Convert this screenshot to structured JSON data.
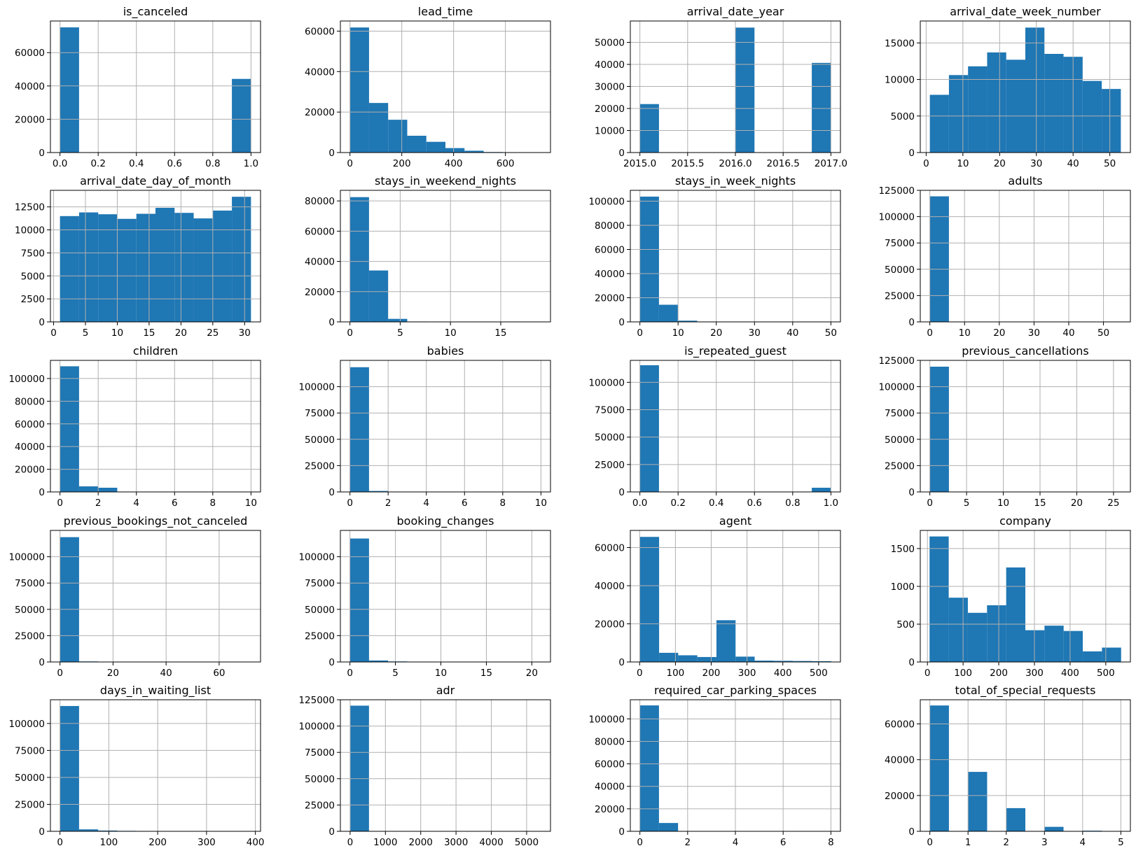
{
  "figure": {
    "bar_color": "#1f77b4",
    "grid_color": "#b0b0b0"
  },
  "chart_data": [
    {
      "type": "bar",
      "title": "is_canceled",
      "grid": true,
      "xlim": [
        -0.05,
        1.05
      ],
      "ylim": [
        0,
        79000
      ],
      "xticks": [
        0.0,
        0.2,
        0.4,
        0.6,
        0.8,
        1.0
      ],
      "xtick_labels": [
        "0.0",
        "0.2",
        "0.4",
        "0.6",
        "0.8",
        "1.0"
      ],
      "yticks": [
        0,
        20000,
        40000,
        60000
      ],
      "ytick_labels": [
        "0",
        "20000",
        "40000",
        "60000"
      ],
      "bin_edges": [
        0,
        0.1,
        0.2,
        0.3,
        0.4,
        0.5,
        0.6,
        0.7,
        0.8,
        0.9,
        1.0
      ],
      "values": [
        75166,
        0,
        0,
        0,
        0,
        0,
        0,
        0,
        0,
        44224
      ]
    },
    {
      "type": "bar",
      "title": "lead_time",
      "grid": true,
      "xlim": [
        -37,
        774
      ],
      "ylim": [
        0,
        65000
      ],
      "xticks": [
        0,
        200,
        400,
        600
      ],
      "xtick_labels": [
        "0",
        "200",
        "400",
        "600"
      ],
      "yticks": [
        0,
        20000,
        40000,
        60000
      ],
      "ytick_labels": [
        "0",
        "20000",
        "40000",
        "60000"
      ],
      "bin_edges": [
        0,
        73.7,
        147.4,
        221.1,
        294.8,
        368.5,
        442.2,
        515.9,
        589.6,
        663.3,
        737
      ],
      "values": [
        61800,
        24500,
        16200,
        8300,
        5300,
        2200,
        900,
        250,
        60,
        30
      ]
    },
    {
      "type": "bar",
      "title": "arrival_date_year",
      "grid": true,
      "xlim": [
        2014.9,
        2017.1
      ],
      "ylim": [
        0,
        59700
      ],
      "xticks": [
        2015.0,
        2015.5,
        2016.0,
        2016.5,
        2017.0
      ],
      "xtick_labels": [
        "2015.0",
        "2015.5",
        "2016.0",
        "2016.5",
        "2017.0"
      ],
      "yticks": [
        0,
        10000,
        20000,
        30000,
        40000,
        50000
      ],
      "ytick_labels": [
        "0",
        "10000",
        "20000",
        "30000",
        "40000",
        "50000"
      ],
      "bin_edges": [
        2015.0,
        2015.2,
        2015.4,
        2015.6,
        2015.8,
        2016.0,
        2016.2,
        2016.4,
        2016.6,
        2016.8,
        2017.0
      ],
      "values": [
        21996,
        0,
        0,
        0,
        0,
        56707,
        0,
        0,
        0,
        40687
      ]
    },
    {
      "type": "bar",
      "title": "arrival_date_week_number",
      "grid": true,
      "xlim": [
        -1.6,
        55.6
      ],
      "ylim": [
        0,
        18000
      ],
      "xticks": [
        0,
        10,
        20,
        30,
        40,
        50
      ],
      "xtick_labels": [
        "0",
        "10",
        "20",
        "30",
        "40",
        "50"
      ],
      "yticks": [
        0,
        5000,
        10000,
        15000
      ],
      "ytick_labels": [
        "0",
        "5000",
        "10000",
        "15000"
      ],
      "bin_edges": [
        1,
        6.2,
        11.4,
        16.6,
        21.8,
        27,
        32.2,
        37.4,
        42.6,
        47.8,
        53
      ],
      "values": [
        7900,
        10600,
        11800,
        13700,
        12700,
        17100,
        13500,
        13100,
        9800,
        8700
      ]
    },
    {
      "type": "bar",
      "title": "arrival_date_day_of_month",
      "grid": true,
      "xlim": [
        -0.5,
        32.5
      ],
      "ylim": [
        0,
        14300
      ],
      "xticks": [
        0,
        5,
        10,
        15,
        20,
        25,
        30
      ],
      "xtick_labels": [
        "0",
        "5",
        "10",
        "15",
        "20",
        "25",
        "30"
      ],
      "yticks": [
        0,
        2500,
        5000,
        7500,
        10000,
        12500
      ],
      "ytick_labels": [
        "0",
        "2500",
        "5000",
        "7500",
        "10000",
        "12500"
      ],
      "bin_edges": [
        1,
        4,
        7,
        10,
        13,
        16,
        19,
        22,
        25,
        28,
        31
      ],
      "values": [
        11500,
        11900,
        11700,
        11200,
        11750,
        12400,
        11850,
        11250,
        12100,
        13600
      ]
    },
    {
      "type": "bar",
      "title": "stays_in_weekend_nights",
      "grid": true,
      "xlim": [
        -0.95,
        19.95
      ],
      "ylim": [
        0,
        87000
      ],
      "xticks": [
        0,
        5,
        10,
        15
      ],
      "xtick_labels": [
        "0",
        "5",
        "10",
        "15"
      ],
      "yticks": [
        0,
        20000,
        40000,
        60000,
        80000
      ],
      "ytick_labels": [
        "0",
        "20000",
        "40000",
        "60000",
        "80000"
      ],
      "bin_edges": [
        0,
        1.9,
        3.8,
        5.7,
        7.6,
        9.5,
        11.4,
        13.3,
        15.2,
        17.1,
        19
      ],
      "values": [
        82500,
        34000,
        2000,
        250,
        100,
        30,
        10,
        5,
        2,
        1
      ]
    },
    {
      "type": "bar",
      "title": "stays_in_week_nights",
      "grid": true,
      "xlim": [
        -2.5,
        52.5
      ],
      "ylim": [
        0,
        109000
      ],
      "xticks": [
        0,
        10,
        20,
        30,
        40,
        50
      ],
      "xtick_labels": [
        "0",
        "10",
        "20",
        "30",
        "40",
        "50"
      ],
      "yticks": [
        0,
        20000,
        40000,
        60000,
        80000,
        100000
      ],
      "ytick_labels": [
        "0",
        "20000",
        "40000",
        "60000",
        "80000",
        "100000"
      ],
      "bin_edges": [
        0,
        5,
        10,
        15,
        20,
        25,
        30,
        35,
        40,
        45,
        50
      ],
      "values": [
        103800,
        14200,
        1000,
        300,
        80,
        30,
        10,
        5,
        2,
        1
      ]
    },
    {
      "type": "bar",
      "title": "adults",
      "grid": true,
      "xlim": [
        -2.75,
        57.75
      ],
      "ylim": [
        0,
        125000
      ],
      "xticks": [
        0,
        10,
        20,
        30,
        40,
        50
      ],
      "xtick_labels": [
        "0",
        "10",
        "20",
        "30",
        "40",
        "50"
      ],
      "yticks": [
        0,
        25000,
        50000,
        75000,
        100000,
        125000
      ],
      "ytick_labels": [
        "0",
        "25000",
        "50000",
        "75000",
        "100000",
        "125000"
      ],
      "bin_edges": [
        0,
        5.5,
        11,
        16.5,
        22,
        27.5,
        33,
        38.5,
        44,
        49.5,
        55
      ],
      "values": [
        119300,
        10,
        5,
        5,
        5,
        5,
        5,
        0,
        0,
        5
      ]
    },
    {
      "type": "bar",
      "title": "children",
      "grid": true,
      "xlim": [
        -0.5,
        10.5
      ],
      "ylim": [
        0,
        116000
      ],
      "xticks": [
        0,
        2,
        4,
        6,
        8,
        10
      ],
      "xtick_labels": [
        "0",
        "2",
        "4",
        "6",
        "8",
        "10"
      ],
      "yticks": [
        0,
        20000,
        40000,
        60000,
        80000,
        100000
      ],
      "ytick_labels": [
        "0",
        "20000",
        "40000",
        "60000",
        "80000",
        "100000"
      ],
      "bin_edges": [
        0,
        1,
        2,
        3,
        4,
        5,
        6,
        7,
        8,
        9,
        10
      ],
      "values": [
        110800,
        4900,
        3700,
        76,
        0,
        0,
        0,
        0,
        0,
        2
      ]
    },
    {
      "type": "bar",
      "title": "babies",
      "grid": true,
      "xlim": [
        -0.5,
        10.5
      ],
      "ylim": [
        0,
        125000
      ],
      "xticks": [
        0,
        2,
        4,
        6,
        8,
        10
      ],
      "xtick_labels": [
        "0",
        "2",
        "4",
        "6",
        "8",
        "10"
      ],
      "yticks": [
        0,
        25000,
        50000,
        75000,
        100000
      ],
      "ytick_labels": [
        "0",
        "25000",
        "50000",
        "75000",
        "100000"
      ],
      "bin_edges": [
        0,
        1,
        2,
        3,
        4,
        5,
        6,
        7,
        8,
        9,
        10
      ],
      "values": [
        118500,
        900,
        15,
        0,
        0,
        0,
        0,
        0,
        0,
        1
      ]
    },
    {
      "type": "bar",
      "title": "is_repeated_guest",
      "grid": true,
      "xlim": [
        -0.05,
        1.05
      ],
      "ylim": [
        0,
        120000
      ],
      "xticks": [
        0.0,
        0.2,
        0.4,
        0.6,
        0.8,
        1.0
      ],
      "xtick_labels": [
        "0.0",
        "0.2",
        "0.4",
        "0.6",
        "0.8",
        "1.0"
      ],
      "yticks": [
        0,
        25000,
        50000,
        75000,
        100000
      ],
      "ytick_labels": [
        "0",
        "25000",
        "50000",
        "75000",
        "100000"
      ],
      "bin_edges": [
        0,
        0.1,
        0.2,
        0.3,
        0.4,
        0.5,
        0.6,
        0.7,
        0.8,
        0.9,
        1.0
      ],
      "values": [
        115580,
        0,
        0,
        0,
        0,
        0,
        0,
        0,
        0,
        3810
      ]
    },
    {
      "type": "bar",
      "title": "previous_cancellations",
      "grid": true,
      "xlim": [
        -1.3,
        27.3
      ],
      "ylim": [
        0,
        125000
      ],
      "xticks": [
        0,
        5,
        10,
        15,
        20,
        25
      ],
      "xtick_labels": [
        "0",
        "5",
        "10",
        "15",
        "20",
        "25"
      ],
      "yticks": [
        0,
        25000,
        50000,
        75000,
        100000,
        125000
      ],
      "ytick_labels": [
        "0",
        "25000",
        "50000",
        "75000",
        "100000",
        "125000"
      ],
      "bin_edges": [
        0,
        2.6,
        5.2,
        7.8,
        10.4,
        13,
        15.6,
        18.2,
        20.8,
        23.4,
        26
      ],
      "values": [
        119000,
        150,
        50,
        0,
        20,
        10,
        0,
        0,
        0,
        60
      ]
    },
    {
      "type": "bar",
      "title": "previous_bookings_not_canceled",
      "grid": true,
      "xlim": [
        -3.6,
        75.6
      ],
      "ylim": [
        0,
        125000
      ],
      "xticks": [
        0,
        20,
        40,
        60
      ],
      "xtick_labels": [
        "0",
        "20",
        "40",
        "60"
      ],
      "yticks": [
        0,
        25000,
        50000,
        75000,
        100000
      ],
      "ytick_labels": [
        "0",
        "25000",
        "50000",
        "75000",
        "100000"
      ],
      "bin_edges": [
        0,
        7.2,
        14.4,
        21.6,
        28.8,
        36,
        43.2,
        50.4,
        57.6,
        64.8,
        72
      ],
      "values": [
        118600,
        500,
        150,
        60,
        30,
        20,
        10,
        5,
        5,
        5
      ]
    },
    {
      "type": "bar",
      "title": "booking_changes",
      "grid": true,
      "xlim": [
        -1.05,
        22.05
      ],
      "ylim": [
        0,
        125000
      ],
      "xticks": [
        0,
        5,
        10,
        15,
        20
      ],
      "xtick_labels": [
        "0",
        "5",
        "10",
        "15",
        "20"
      ],
      "yticks": [
        0,
        25000,
        50000,
        75000,
        100000
      ],
      "ytick_labels": [
        "0",
        "25000",
        "50000",
        "75000",
        "100000"
      ],
      "bin_edges": [
        0,
        2.1,
        4.2,
        6.3,
        8.4,
        10.5,
        12.6,
        14.7,
        16.8,
        18.9,
        21
      ],
      "values": [
        117300,
        1400,
        500,
        100,
        40,
        20,
        10,
        5,
        5,
        5
      ]
    },
    {
      "type": "bar",
      "title": "agent",
      "grid": true,
      "xlim": [
        -26,
        561
      ],
      "ylim": [
        0,
        69000
      ],
      "xticks": [
        0,
        100,
        200,
        300,
        400,
        500
      ],
      "xtick_labels": [
        "0",
        "100",
        "200",
        "300",
        "400",
        "500"
      ],
      "yticks": [
        0,
        20000,
        40000,
        60000
      ],
      "ytick_labels": [
        "0",
        "20000",
        "40000",
        "60000"
      ],
      "bin_edges": [
        1,
        54.4,
        107.8,
        161.2,
        214.6,
        268,
        321.4,
        374.8,
        428.2,
        481.6,
        535
      ],
      "values": [
        65600,
        4800,
        3500,
        2600,
        21900,
        2800,
        700,
        600,
        500,
        400
      ]
    },
    {
      "type": "bar",
      "title": "company",
      "grid": true,
      "xlim": [
        -20,
        569
      ],
      "ylim": [
        0,
        1740
      ],
      "xticks": [
        0,
        100,
        200,
        300,
        400,
        500
      ],
      "xtick_labels": [
        "0",
        "100",
        "200",
        "300",
        "400",
        "500"
      ],
      "yticks": [
        0,
        500,
        1000,
        1500
      ],
      "ytick_labels": [
        "0",
        "500",
        "1000",
        "1500"
      ],
      "bin_edges": [
        6,
        59.7,
        113.4,
        167.1,
        220.8,
        274.5,
        328.2,
        381.9,
        435.6,
        489.3,
        543
      ],
      "values": [
        1660,
        850,
        650,
        750,
        1250,
        420,
        480,
        410,
        140,
        190
      ]
    },
    {
      "type": "bar",
      "title": "days_in_waiting_list",
      "grid": true,
      "xlim": [
        -19.55,
        410.55
      ],
      "ylim": [
        0,
        122000
      ],
      "xticks": [
        0,
        100,
        200,
        300,
        400
      ],
      "xtick_labels": [
        "0",
        "100",
        "200",
        "300",
        "400"
      ],
      "yticks": [
        0,
        25000,
        50000,
        75000,
        100000
      ],
      "ytick_labels": [
        "0",
        "25000",
        "50000",
        "75000",
        "100000"
      ],
      "bin_edges": [
        0,
        39.1,
        78.2,
        117.3,
        156.4,
        195.5,
        234.6,
        273.7,
        312.8,
        351.9,
        391
      ],
      "values": [
        116200,
        1800,
        700,
        400,
        150,
        100,
        80,
        10,
        10,
        40
      ]
    },
    {
      "type": "bar",
      "title": "adr",
      "grid": true,
      "xlim": [
        -276,
        5676
      ],
      "ylim": [
        0,
        125000
      ],
      "xticks": [
        0,
        1000,
        2000,
        3000,
        4000,
        5000
      ],
      "xtick_labels": [
        "0",
        "1000",
        "2000",
        "3000",
        "4000",
        "5000"
      ],
      "yticks": [
        0,
        25000,
        50000,
        75000,
        100000,
        125000
      ],
      "ytick_labels": [
        "0",
        "25000",
        "50000",
        "75000",
        "100000",
        "125000"
      ],
      "bin_edges": [
        -6.38,
        534.6,
        1075.6,
        1616.5,
        2157.5,
        2698.5,
        3239.5,
        3780.5,
        4321.5,
        4862.5,
        5400
      ],
      "values": [
        119380,
        8,
        0,
        0,
        0,
        0,
        0,
        0,
        0,
        1
      ]
    },
    {
      "type": "bar",
      "title": "required_car_parking_spaces",
      "grid": true,
      "xlim": [
        -0.4,
        8.4
      ],
      "ylim": [
        0,
        117000
      ],
      "xticks": [
        0,
        2,
        4,
        6,
        8
      ],
      "xtick_labels": [
        "0",
        "2",
        "4",
        "6",
        "8"
      ],
      "yticks": [
        0,
        20000,
        40000,
        60000,
        80000,
        100000
      ],
      "ytick_labels": [
        "0",
        "20000",
        "40000",
        "60000",
        "80000",
        "100000"
      ],
      "bin_edges": [
        0,
        0.8,
        1.6,
        2.4,
        3.2,
        4.0,
        4.8,
        5.6,
        6.4,
        7.2,
        8.0
      ],
      "values": [
        111970,
        7400,
        28,
        3,
        0,
        0,
        0,
        0,
        0,
        2
      ]
    },
    {
      "type": "bar",
      "title": "total_of_special_requests",
      "grid": true,
      "xlim": [
        -0.25,
        5.25
      ],
      "ylim": [
        0,
        73500
      ],
      "xticks": [
        0,
        1,
        2,
        3,
        4,
        5
      ],
      "xtick_labels": [
        "0",
        "1",
        "2",
        "3",
        "4",
        "5"
      ],
      "yticks": [
        0,
        20000,
        40000,
        60000
      ],
      "ytick_labels": [
        "0",
        "20000",
        "40000",
        "60000"
      ],
      "bin_edges": [
        0,
        0.5,
        1,
        1.5,
        2,
        2.5,
        3,
        3.5,
        4,
        4.5,
        5
      ],
      "values": [
        70300,
        0,
        33200,
        0,
        12950,
        0,
        2500,
        0,
        340,
        40
      ]
    }
  ]
}
